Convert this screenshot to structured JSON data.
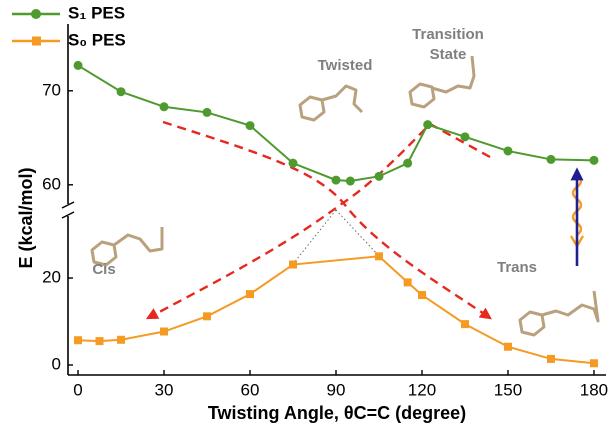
{
  "chart_data": {
    "type": "line",
    "x_label": "Twisting Angle, θC=C (degree)",
    "y_label": "E (kcal/mol)",
    "xlim": [
      -2,
      182
    ],
    "xticks": [
      0,
      30,
      60,
      90,
      120,
      150,
      180
    ],
    "y_segments": [
      {
        "ylim": [
          -2,
          33
        ],
        "yticks": [
          0,
          20
        ]
      },
      {
        "ylim": [
          57,
          77
        ],
        "yticks": [
          60,
          70
        ]
      }
    ],
    "series": [
      {
        "name": "S₁ PES",
        "color": "#4e9a2f",
        "marker": "circle",
        "x": [
          0,
          15,
          30,
          45,
          60,
          75,
          90,
          95,
          105,
          115,
          122,
          135,
          150,
          165,
          180
        ],
        "values": [
          72.7,
          69.9,
          68.3,
          67.7,
          66.3,
          62.3,
          60.5,
          60.4,
          60.9,
          62.3,
          66.4,
          65.1,
          63.6,
          62.7,
          62.6
        ]
      },
      {
        "name": "S₀ PES",
        "color": "#f59a23",
        "marker": "square",
        "x": [
          0,
          7.5,
          15,
          30,
          45,
          60,
          75,
          105,
          115,
          120,
          135,
          150,
          165,
          180
        ],
        "values": [
          5.7,
          5.5,
          5.8,
          7.7,
          11.2,
          16.3,
          23.1,
          25,
          19,
          16.1,
          9.4,
          4.2,
          1.4,
          0.4
        ]
      }
    ],
    "annotations": [
      "Twisted",
      "Transition",
      "State",
      "Cis",
      "Trans"
    ]
  }
}
